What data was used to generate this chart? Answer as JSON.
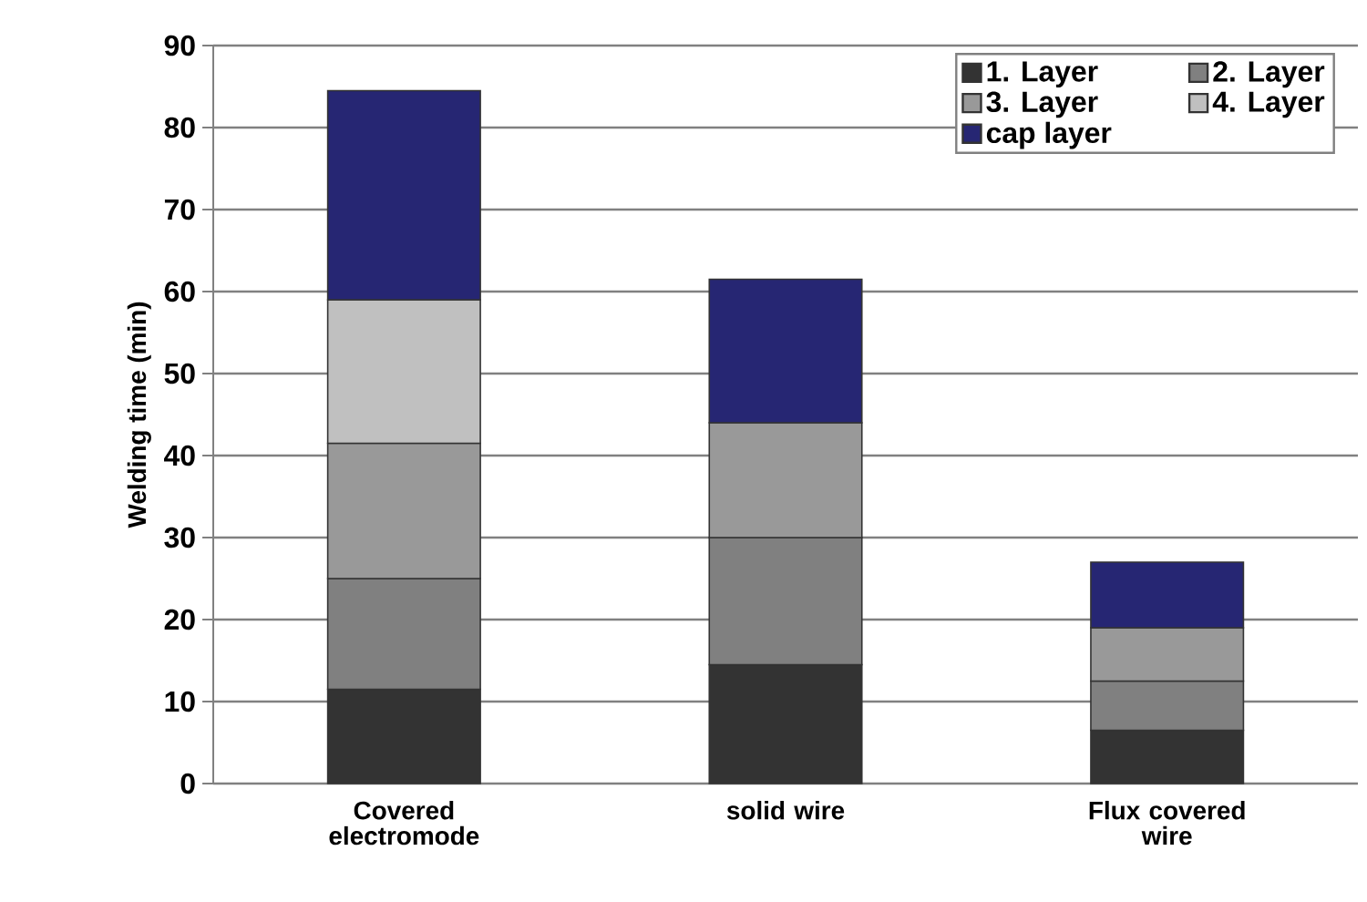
{
  "chart_data": {
    "type": "bar",
    "stacked": true,
    "ylabel": "Welding time (min)",
    "categories": [
      "Covered electromode",
      "solid wire",
      "Flux covered wire"
    ],
    "series": [
      {
        "name": "1. Layer",
        "color": "#333333",
        "values": [
          11.5,
          14.5,
          6.5
        ]
      },
      {
        "name": "2. Layer",
        "color": "#808080",
        "values": [
          13.5,
          15.5,
          6
        ]
      },
      {
        "name": "3. Layer",
        "color": "#999999",
        "values": [
          16.5,
          14,
          6.5
        ]
      },
      {
        "name": "4. Layer",
        "color": "#c0c0c0",
        "values": [
          17.5,
          null,
          null
        ]
      },
      {
        "name": "cap layer",
        "color": "#262673",
        "values": [
          25.5,
          17.5,
          8
        ]
      }
    ],
    "ylim": [
      0,
      90
    ],
    "yticks": [
      0,
      10,
      20,
      30,
      40,
      50,
      60,
      70,
      80,
      90
    ],
    "grid": "y",
    "legend": "top right"
  }
}
